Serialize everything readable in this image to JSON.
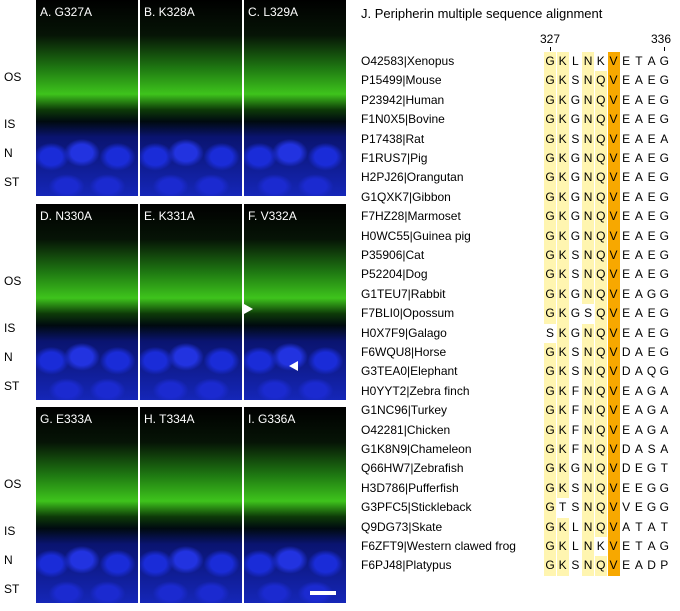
{
  "panels": [
    {
      "label": "A. G327A"
    },
    {
      "label": "B. K328A"
    },
    {
      "label": "C. L329A"
    },
    {
      "label": "D. N330A"
    },
    {
      "label": "E. K331A"
    },
    {
      "label": "F. V332A"
    },
    {
      "label": "G. E333A"
    },
    {
      "label": "H. T334A"
    },
    {
      "label": "I. G336A"
    }
  ],
  "layer_labels": [
    "OS",
    "IS",
    "N",
    "ST"
  ],
  "alignment": {
    "title": "J. Peripherin multiple sequence alignment",
    "start_position": "327",
    "end_position": "336",
    "consensus": [
      "G",
      "K",
      "",
      "N",
      "Q",
      "V",
      "",
      "",
      "",
      ""
    ],
    "colors": {
      "conserved": "#fff5b0",
      "invariant": "#f7a800"
    },
    "rows": [
      {
        "label": "O42583|Xenopus",
        "seq": "GKLNKVETAG"
      },
      {
        "label": "P15499|Mouse",
        "seq": "GKSNQVEAEG"
      },
      {
        "label": "P23942|Human",
        "seq": "GKGNQVEAEG"
      },
      {
        "label": "F1N0X5|Bovine",
        "seq": "GKGNQVEAEG"
      },
      {
        "label": "P17438|Rat",
        "seq": "GKSNQVEAEA"
      },
      {
        "label": "F1RUS7|Pig",
        "seq": "GKGNQVEAEG"
      },
      {
        "label": "H2PJ26|Orangutan",
        "seq": "GKGNQVEAEG"
      },
      {
        "label": "G1QXK7|Gibbon",
        "seq": "GKGNQVEAEG"
      },
      {
        "label": "F7HZ28|Marmoset",
        "seq": "GKGNQVEAEG"
      },
      {
        "label": "H0WC55|Guinea pig",
        "seq": "GKGNQVEAEG"
      },
      {
        "label": "P35906|Cat",
        "seq": "GKSNQVEAEG"
      },
      {
        "label": "P52204|Dog",
        "seq": "GKSNQVEAEG"
      },
      {
        "label": "G1TEU7|Rabbit",
        "seq": "GKGNQVEAGG"
      },
      {
        "label": "F7BLI0|Opossum",
        "seq": "GKGSQVEAEG"
      },
      {
        "label": "H0X7F9|Galago",
        "seq": "SKGNQVEAEG"
      },
      {
        "label": "F6WQU8|Horse",
        "seq": "GKSNQVDAEG"
      },
      {
        "label": "G3TEA0|Elephant",
        "seq": "GKSNQVDAQG"
      },
      {
        "label": "H0YYT2|Zebra finch",
        "seq": "GKFNQVEAGA"
      },
      {
        "label": "G1NC96|Turkey",
        "seq": "GKFNQVEAGA"
      },
      {
        "label": "O42281|Chicken",
        "seq": "GKFNQVEAGA"
      },
      {
        "label": "G1K8N9|Chameleon",
        "seq": "GKFNQVDASA"
      },
      {
        "label": "Q66HW7|Zebrafish",
        "seq": "GKGNQVDEGT"
      },
      {
        "label": "H3D786|Pufferfish",
        "seq": "GKSNQVEEGG"
      },
      {
        "label": "G3PFC5|Stickleback",
        "seq": "GTSNQVVEGG"
      },
      {
        "label": "Q9DG73|Skate",
        "seq": "GKLNQVATAT"
      },
      {
        "label": "F6ZFT9|Western clawed frog",
        "seq": "GKLNKVETAG"
      },
      {
        "label": "F6PJ48|Platypus",
        "seq": "GKSNQVEADP"
      }
    ]
  }
}
